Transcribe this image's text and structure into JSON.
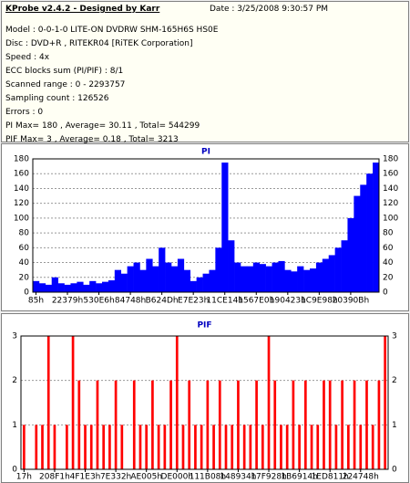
{
  "header": {
    "title": "KProbe v2.4.2 - Designed by Karr",
    "date": "Date : 3/25/2008 9:30:57 PM",
    "lines": [
      "Model : 0-0-1-0 LITE-ON DVDRW SHM-165H6S HS0E",
      "Disc : DVD+R , RITEKR04 [RiTEK Corporation]",
      "Speed : 4x",
      "ECC blocks sum (PI/PIF) : 8/1",
      "Scanned range : 0 - 2293757",
      "Sampling count : 126526",
      "Errors : 0",
      "PI Max= 180 , Average= 30.11 , Total= 544299",
      "PIF Max= 3 , Average= 0.18 , Total= 3213"
    ]
  },
  "chart_data": [
    {
      "type": "bar",
      "title": "PI",
      "color": "#0000ff",
      "grid": true,
      "categories": [
        "85h",
        null,
        null,
        null,
        null,
        "22379h",
        null,
        null,
        null,
        null,
        "530E6h",
        null,
        null,
        null,
        null,
        "84748h",
        null,
        null,
        null,
        null,
        "B624Dh",
        null,
        null,
        null,
        null,
        "E7E23h",
        null,
        null,
        null,
        null,
        "11CE14h",
        null,
        null,
        null,
        null,
        "1567E0h",
        null,
        null,
        null,
        null,
        "190423h",
        null,
        null,
        null,
        null,
        "1C9E98h",
        null,
        null,
        null,
        null,
        "20390Bh",
        null,
        null,
        null,
        null
      ],
      "values": [
        15,
        12,
        10,
        20,
        12,
        10,
        12,
        14,
        10,
        15,
        12,
        14,
        16,
        30,
        25,
        35,
        40,
        30,
        45,
        35,
        60,
        40,
        35,
        45,
        30,
        15,
        20,
        25,
        30,
        60,
        175,
        70,
        40,
        35,
        35,
        40,
        38,
        35,
        40,
        42,
        30,
        28,
        35,
        30,
        32,
        40,
        45,
        50,
        60,
        70,
        100,
        130,
        145,
        160,
        175
      ],
      "ylim": [
        0,
        180
      ],
      "yticks": [
        0,
        20,
        40,
        60,
        80,
        100,
        120,
        140,
        160,
        180
      ]
    },
    {
      "type": "bar",
      "title": "PIF",
      "color": "#ff0000",
      "grid": true,
      "categories": [
        "17h",
        null,
        null,
        null,
        null,
        "208F1h",
        null,
        null,
        null,
        null,
        "4F1E3h",
        null,
        null,
        null,
        null,
        "7E332h",
        null,
        null,
        null,
        null,
        "AE005h",
        null,
        null,
        null,
        null,
        "DE000h",
        null,
        null,
        null,
        null,
        "111B08h",
        null,
        null,
        null,
        null,
        "148934h",
        null,
        null,
        null,
        null,
        "17F928h",
        null,
        null,
        null,
        null,
        "1B6914h",
        null,
        null,
        null,
        null,
        "1ED811h",
        null,
        null,
        null,
        null,
        "224748h",
        null,
        null,
        null,
        null
      ],
      "values": [
        1,
        0,
        1,
        1,
        3,
        1,
        0,
        1,
        3,
        2,
        1,
        1,
        2,
        1,
        1,
        2,
        1,
        0,
        2,
        1,
        1,
        2,
        1,
        1,
        2,
        3,
        1,
        2,
        1,
        1,
        2,
        1,
        2,
        1,
        1,
        2,
        1,
        1,
        2,
        1,
        3,
        2,
        1,
        1,
        2,
        1,
        2,
        1,
        1,
        2,
        2,
        1,
        2,
        1,
        2,
        1,
        2,
        1,
        2,
        3
      ],
      "ylim": [
        0,
        3
      ],
      "yticks": [
        0,
        1,
        2,
        3
      ]
    }
  ]
}
